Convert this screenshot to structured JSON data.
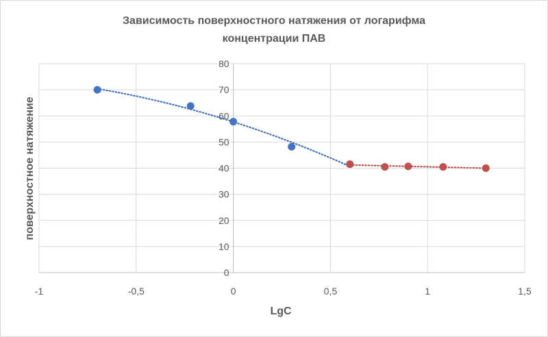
{
  "chart_data": {
    "type": "scatter",
    "title_line1": "Зависимость поверхностного  натяжения от логарифма",
    "title_line2": "концентрации ПАВ",
    "xlabel": "LgC",
    "ylabel": "поверхностное натяжение",
    "xlim": [
      -1,
      1.5
    ],
    "ylim": [
      0,
      80
    ],
    "x_ticks": [
      -1,
      -0.5,
      0,
      0.5,
      1,
      1.5
    ],
    "x_tick_labels": [
      "-1",
      "-0,5",
      "0",
      "0,5",
      "1",
      "1,5"
    ],
    "y_ticks": [
      0,
      10,
      20,
      30,
      40,
      50,
      60,
      70,
      80
    ],
    "y_tick_labels": [
      "0",
      "10",
      "20",
      "30",
      "40",
      "50",
      "60",
      "70",
      "80"
    ],
    "grid": true,
    "series": [
      {
        "color": "#4472c4",
        "trendline": "polynomial",
        "x": [
          -0.7,
          -0.22,
          0.0,
          0.3,
          0.6
        ],
        "y": [
          70.0,
          63.8,
          57.8,
          48.2,
          41.5
        ]
      },
      {
        "color": "#c0504d",
        "trendline": "linear",
        "x": [
          0.6,
          0.78,
          0.9,
          1.08,
          1.3
        ],
        "y": [
          41.5,
          40.5,
          40.7,
          40.5,
          40.0
        ]
      }
    ]
  }
}
